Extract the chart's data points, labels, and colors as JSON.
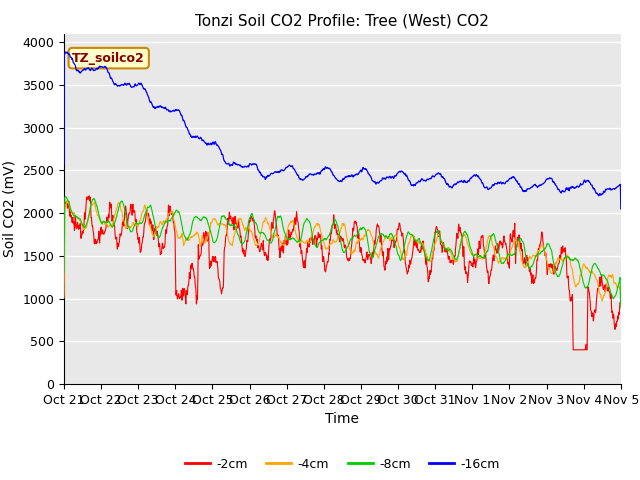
{
  "title": "Tonzi Soil CO2 Profile: Tree (West) CO2",
  "ylabel": "Soil CO2 (mV)",
  "xlabel": "Time",
  "annotation": "TZ_soilco2",
  "x_tick_labels": [
    "Oct 21",
    "Oct 22",
    "Oct 23",
    "Oct 24",
    "Oct 25",
    "Oct 26",
    "Oct 27",
    "Oct 28",
    "Oct 29",
    "Oct 30",
    "Oct 31",
    "Nov 1",
    "Nov 2",
    "Nov 3",
    "Nov 4",
    "Nov 5"
  ],
  "ylim": [
    0,
    4100
  ],
  "legend_labels": [
    "-2cm",
    "-4cm",
    "-8cm",
    "-16cm"
  ],
  "legend_colors": [
    "#ff0000",
    "#ffa500",
    "#00cc00",
    "#0000ff"
  ],
  "colors": {
    "2cm": "#ff0000",
    "4cm": "#ffa500",
    "8cm": "#00cc00",
    "16cm": "#0000ff"
  },
  "bg_color": "#e8e8e8",
  "title_fontsize": 11,
  "axis_fontsize": 10,
  "tick_fontsize": 9
}
